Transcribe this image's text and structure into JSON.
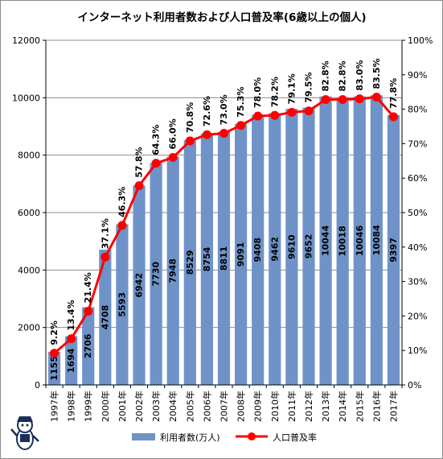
{
  "chart_data": {
    "type": "bar+line",
    "title": "インターネット利用者数および人口普及率(6歳以上の個人)",
    "categories": [
      "1997年",
      "1998年",
      "1999年",
      "2000年",
      "2001年",
      "2002年",
      "2003年",
      "2004年",
      "2005年",
      "2006年",
      "2007年",
      "2008年",
      "2009年",
      "2010年",
      "2011年",
      "2012年",
      "2013年",
      "2014年",
      "2015年",
      "2016年",
      "2017年"
    ],
    "series": [
      {
        "name": "利用者数(万人)",
        "type": "bar",
        "axis": "left",
        "color": "#6f93c8",
        "values": [
          1155,
          1694,
          2706,
          4708,
          5593,
          6942,
          7730,
          7948,
          8529,
          8754,
          8811,
          9091,
          9408,
          9462,
          9610,
          9652,
          10044,
          10018,
          10046,
          10084,
          9397
        ]
      },
      {
        "name": "人口普及率",
        "type": "line",
        "axis": "right",
        "color": "#ff0000",
        "values": [
          9.2,
          13.4,
          21.4,
          37.1,
          46.3,
          57.8,
          64.3,
          66.0,
          70.8,
          72.6,
          73.0,
          75.3,
          78.0,
          78.2,
          79.1,
          79.5,
          82.8,
          82.8,
          83.0,
          83.5,
          77.8
        ],
        "labels": [
          "9.2%",
          "13.4%",
          "21.4%",
          "37.1%",
          "46.3%",
          "57.8%",
          "64.3%",
          "66.0%",
          "70.8%",
          "72.6%",
          "73.0%",
          "75.3%",
          "78.0%",
          "78.2%",
          "79.1%",
          "79.5%",
          "82.8%",
          "82.8%",
          "83.0%",
          "83.5%",
          "77.8%"
        ]
      }
    ],
    "y_left": {
      "min": 0,
      "max": 12000,
      "ticks": [
        "0",
        "2000",
        "4000",
        "6000",
        "8000",
        "10000",
        "12000"
      ]
    },
    "y_right": {
      "min": 0,
      "max": 100,
      "ticks": [
        "0%",
        "10%",
        "20%",
        "30%",
        "40%",
        "50%",
        "60%",
        "70%",
        "80%",
        "90%",
        "100%"
      ]
    },
    "grid": true,
    "legend_position": "bottom"
  }
}
